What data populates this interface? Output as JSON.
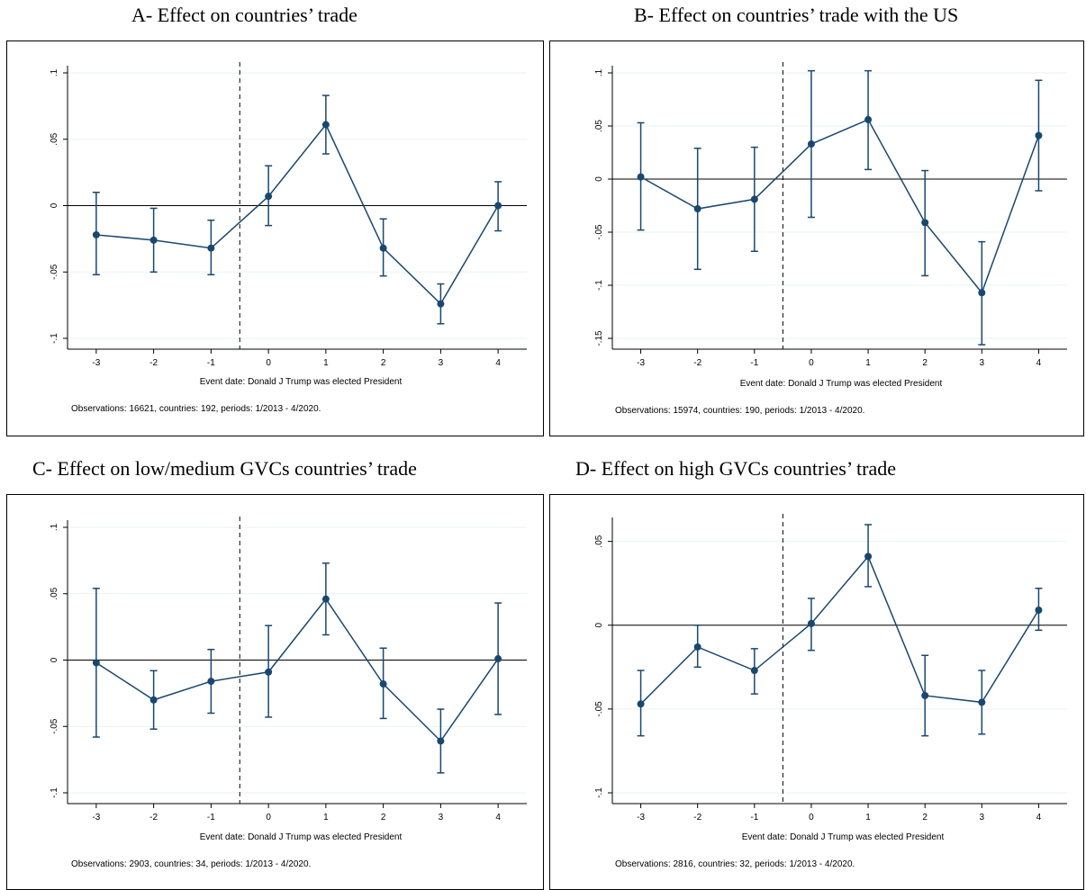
{
  "panels": [
    {
      "id": "A",
      "title": "A- Effect on countries’ trade",
      "xlabel": "Event date: Donald J Trump was elected President",
      "note": "Observations: 16621, countries: 192, periods: 1/2013 - 4/2020.",
      "chart_data": {
        "type": "scatter",
        "x": [
          -3,
          -2,
          -1,
          0,
          1,
          2,
          3,
          4
        ],
        "y": [
          -0.022,
          -0.026,
          -0.032,
          0.007,
          0.061,
          -0.032,
          -0.074,
          0.0
        ],
        "ci_low": [
          -0.052,
          -0.05,
          -0.052,
          -0.015,
          0.039,
          -0.053,
          -0.089,
          -0.019
        ],
        "ci_high": [
          0.01,
          -0.002,
          -0.011,
          0.03,
          0.083,
          -0.01,
          -0.059,
          0.018
        ],
        "ylim": [
          -0.1,
          0.1
        ],
        "yticks": [
          -0.1,
          -0.05,
          0,
          0.05,
          0.1
        ],
        "ytick_labels": [
          "-.1",
          "-.05",
          "0",
          ".05",
          ".1"
        ],
        "xlim": [
          -3.5,
          4.5
        ],
        "xticks": [
          -3,
          -2,
          -1,
          0,
          1,
          2,
          3,
          4
        ],
        "event_line_x": -0.5,
        "reference_line_y": 0,
        "grid": true
      }
    },
    {
      "id": "B",
      "title": "B- Effect on countries’ trade with the US",
      "xlabel": "Event date: Donald J Trump was elected President",
      "note": "Observations: 15974, countries: 190, periods: 1/2013 - 4/2020.",
      "chart_data": {
        "type": "scatter",
        "x": [
          -3,
          -2,
          -1,
          0,
          1,
          2,
          3,
          4
        ],
        "y": [
          0.002,
          -0.028,
          -0.019,
          0.033,
          0.056,
          -0.041,
          -0.107,
          0.041
        ],
        "ci_low": [
          -0.048,
          -0.085,
          -0.068,
          -0.036,
          0.009,
          -0.091,
          -0.156,
          -0.011
        ],
        "ci_high": [
          0.053,
          0.029,
          0.03,
          0.102,
          0.102,
          0.008,
          -0.059,
          0.093
        ],
        "ylim": [
          -0.15,
          0.1
        ],
        "yticks": [
          -0.15,
          -0.1,
          -0.05,
          0,
          0.05,
          0.1
        ],
        "ytick_labels": [
          "-.15",
          "-.1",
          "-.05",
          "0",
          ".05",
          ".1"
        ],
        "xlim": [
          -3.5,
          4.5
        ],
        "xticks": [
          -3,
          -2,
          -1,
          0,
          1,
          2,
          3,
          4
        ],
        "event_line_x": -0.5,
        "reference_line_y": 0,
        "grid": true
      }
    },
    {
      "id": "C",
      "title": "C- Effect on low/medium GVCs countries’ trade",
      "xlabel": "Event date: Donald J Trump was elected President",
      "note": "Observations: 2903, countries: 34, periods: 1/2013 - 4/2020.",
      "chart_data": {
        "type": "scatter",
        "x": [
          -3,
          -2,
          -1,
          0,
          1,
          2,
          3,
          4
        ],
        "y": [
          -0.002,
          -0.03,
          -0.016,
          -0.009,
          0.046,
          -0.018,
          -0.061,
          0.001
        ],
        "ci_low": [
          -0.058,
          -0.052,
          -0.04,
          -0.043,
          0.019,
          -0.044,
          -0.085,
          -0.041
        ],
        "ci_high": [
          0.054,
          -0.008,
          0.008,
          0.026,
          0.073,
          0.009,
          -0.037,
          0.043
        ],
        "ylim": [
          -0.1,
          0.1
        ],
        "yticks": [
          -0.1,
          -0.05,
          0,
          0.05,
          0.1
        ],
        "ytick_labels": [
          "-.1",
          "-.05",
          "0",
          ".05",
          ".1"
        ],
        "xlim": [
          -3.5,
          4.5
        ],
        "xticks": [
          -3,
          -2,
          -1,
          0,
          1,
          2,
          3,
          4
        ],
        "event_line_x": -0.5,
        "reference_line_y": 0,
        "grid": true
      }
    },
    {
      "id": "D",
      "title": "D- Effect on high GVCs countries’ trade",
      "xlabel": "Event date: Donald J Trump was elected President",
      "note": "Observations: 2816, countries: 32, periods: 1/2013 - 4/2020.",
      "chart_data": {
        "type": "scatter",
        "x": [
          -3,
          -2,
          -1,
          0,
          1,
          2,
          3,
          4
        ],
        "y": [
          -0.047,
          -0.013,
          -0.027,
          0.001,
          0.041,
          -0.042,
          -0.046,
          0.009
        ],
        "ci_low": [
          -0.066,
          -0.025,
          -0.041,
          -0.015,
          0.023,
          -0.066,
          -0.065,
          -0.003
        ],
        "ci_high": [
          -0.027,
          0.0,
          -0.014,
          0.016,
          0.06,
          -0.018,
          -0.027,
          0.022
        ],
        "ylim": [
          -0.1,
          0.06
        ],
        "yticks": [
          -0.1,
          -0.05,
          0,
          0.05
        ],
        "ytick_labels": [
          "-.1",
          "-.05",
          "0",
          ".05"
        ],
        "xlim": [
          -3.5,
          4.5
        ],
        "xticks": [
          -3,
          -2,
          -1,
          0,
          1,
          2,
          3,
          4
        ],
        "event_line_x": -0.5,
        "reference_line_y": 0,
        "grid": true
      }
    }
  ],
  "colors": {
    "series": "#1a476f",
    "grid": "#eaf2f3",
    "axis": "#000000",
    "event_line": "#000000"
  }
}
